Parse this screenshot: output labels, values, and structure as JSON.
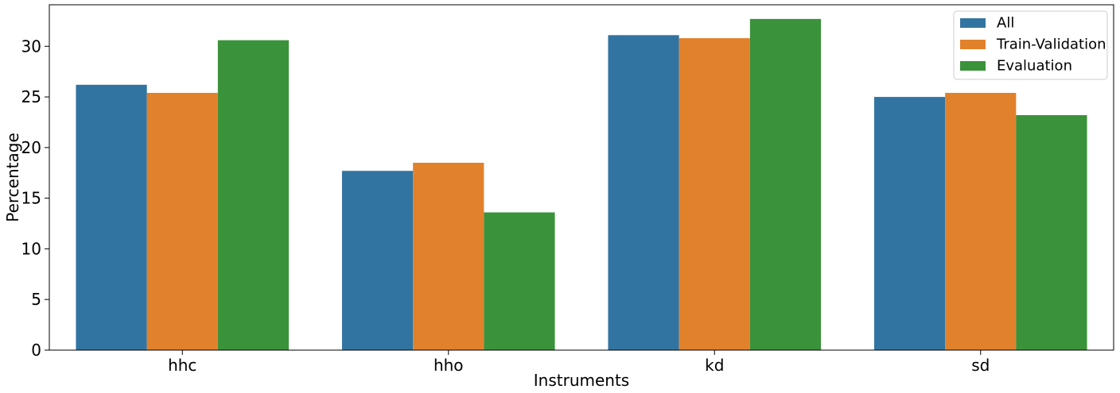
{
  "chart_data": {
    "type": "bar",
    "title": "",
    "xlabel": "Instruments",
    "ylabel": "Percentage",
    "categories": [
      "hhc",
      "hho",
      "kd",
      "sd"
    ],
    "series": [
      {
        "name": "All",
        "color": "#3274a1",
        "values": [
          26.2,
          17.7,
          31.1,
          25.0
        ]
      },
      {
        "name": "Train-Validation",
        "color": "#e1812c",
        "values": [
          25.4,
          18.5,
          30.8,
          25.4
        ]
      },
      {
        "name": "Evaluation",
        "color": "#3a923a",
        "values": [
          30.6,
          13.6,
          32.7,
          23.2
        ]
      }
    ],
    "ylim": [
      0,
      34.1
    ],
    "yticks": [
      0,
      5,
      10,
      15,
      20,
      25,
      30
    ],
    "grid": false,
    "legend_position": "top-right"
  }
}
